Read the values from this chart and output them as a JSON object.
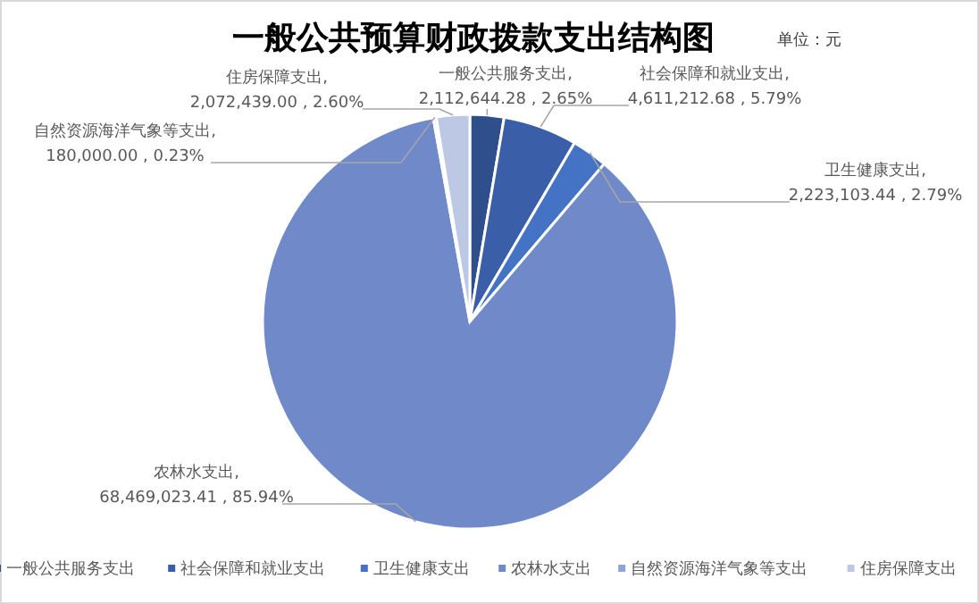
{
  "chart_data": {
    "type": "pie",
    "title": "一般公共预算财政拨款支出结构图",
    "annotations": [
      "单位：元"
    ],
    "categories": [
      "一般公共服务支出",
      "社会保障和就业支出",
      "卫生健康支出",
      "农林水支出",
      "自然资源海洋气象等支出",
      "住房保障支出"
    ],
    "values": [
      2112644.28,
      4611212.68,
      2223103.44,
      68469023.41,
      180000.0,
      2072439.0
    ],
    "value_labels": [
      "一般公共服务支出, 2,112,644.28 , 2.65%",
      "社会保障和就业支出, 4,611,212.68 , 5.79%",
      "卫生健康支出, 2,223,103.44 , 2.79%",
      "农林水支出, 68,469,023.41 , 85.94%",
      "自然资源海洋气象等支出, 180,000.00 , 0.23%",
      "住房保障支出, 2,072,439.00 , 2.60%"
    ],
    "colors": [
      "#2f4f8c",
      "#3a5ea8",
      "#4472c4",
      "#6f89c9",
      "#8ea3d6",
      "#bcc8e4"
    ],
    "legend": "bottom"
  }
}
